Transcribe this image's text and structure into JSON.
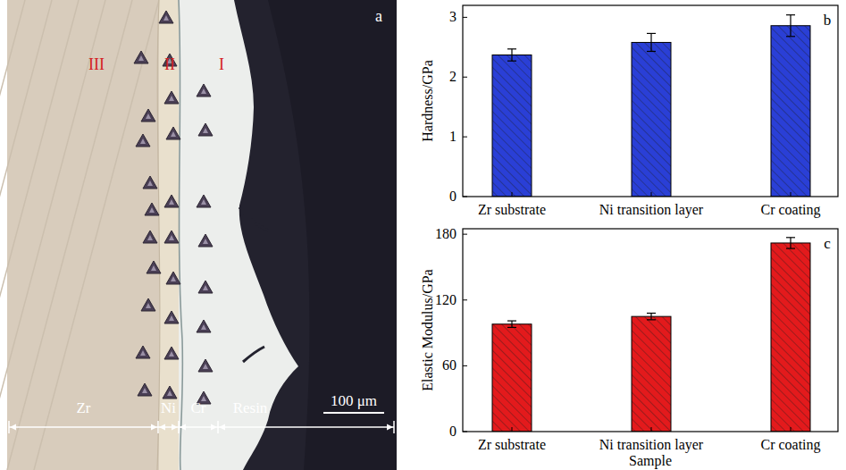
{
  "micrograph": {
    "panel_label": "a",
    "region_labels": [
      "III",
      "II",
      "I"
    ],
    "layer_labels": [
      "Zr",
      "Ni",
      "Cr",
      "Resin"
    ],
    "scale_bar": "100 μm"
  },
  "chart_data": [
    {
      "type": "bar",
      "panel_label": "b",
      "y_label": "Hardness/GPa",
      "categories": [
        "Zr substrate",
        "Ni transition layer",
        "Cr coating"
      ],
      "values": [
        2.37,
        2.58,
        2.86
      ],
      "errors": [
        0.1,
        0.15,
        0.18
      ],
      "color": "#2a3fd6",
      "ylim": [
        0,
        3.2
      ],
      "yticks": [
        0,
        1,
        2,
        3
      ]
    },
    {
      "type": "bar",
      "panel_label": "c",
      "x_label": "Sample",
      "y_label": "Elastic Modulus/GPa",
      "categories": [
        "Zr substrate",
        "Ni transition layer",
        "Cr coating"
      ],
      "values": [
        98,
        105,
        172
      ],
      "errors": [
        3,
        3,
        5
      ],
      "color": "#e31a1c",
      "ylim": [
        0,
        185
      ],
      "yticks": [
        0,
        60,
        120,
        180
      ]
    }
  ]
}
